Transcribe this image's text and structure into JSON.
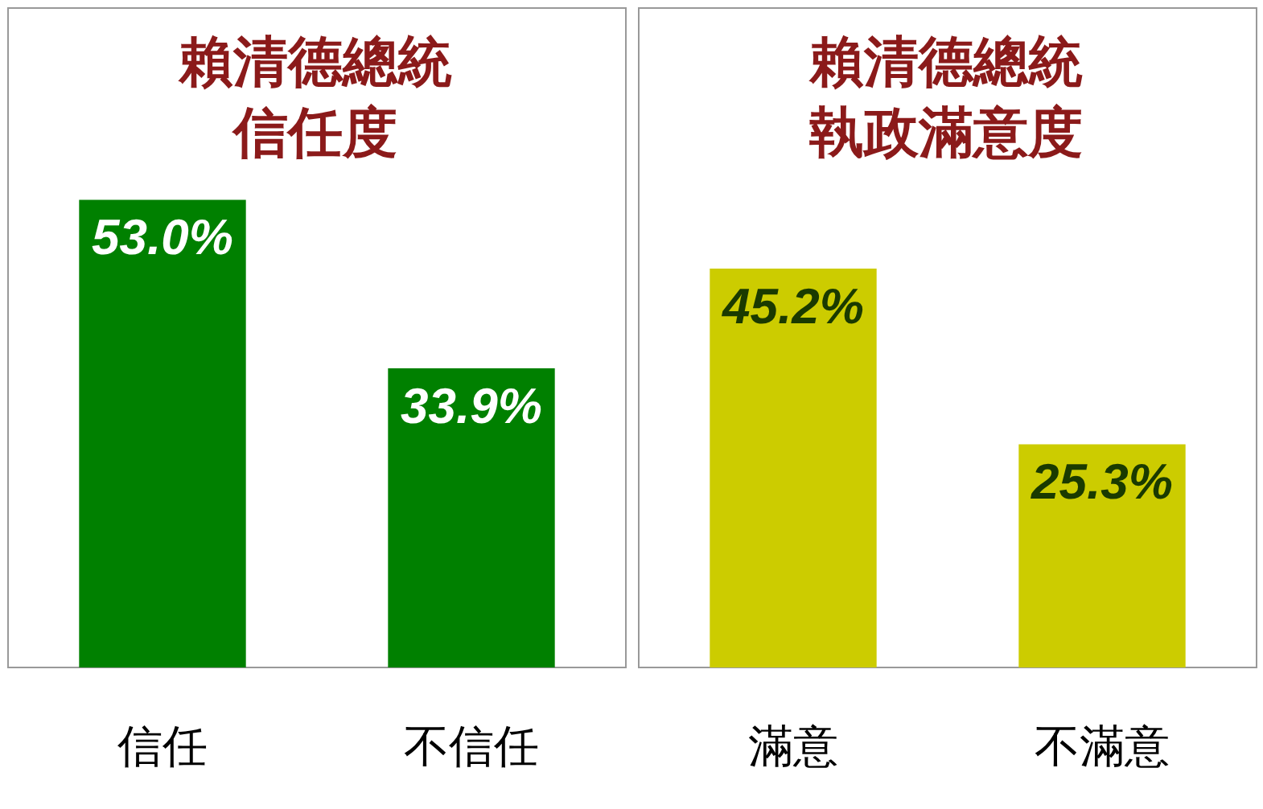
{
  "chart_data": [
    {
      "type": "bar",
      "title": "賴清德總統信任度",
      "categories": [
        "信任",
        "不信任"
      ],
      "values": [
        53.0,
        33.9
      ],
      "value_labels": [
        "53.0%",
        "33.9%"
      ],
      "color": "#008000"
    },
    {
      "type": "bar",
      "title": "賴清德總統執政滿意度",
      "categories": [
        "滿意",
        "不滿意"
      ],
      "values": [
        45.2,
        25.3
      ],
      "value_labels": [
        "45.2%",
        "25.3%"
      ],
      "color": "#cccc00"
    }
  ]
}
